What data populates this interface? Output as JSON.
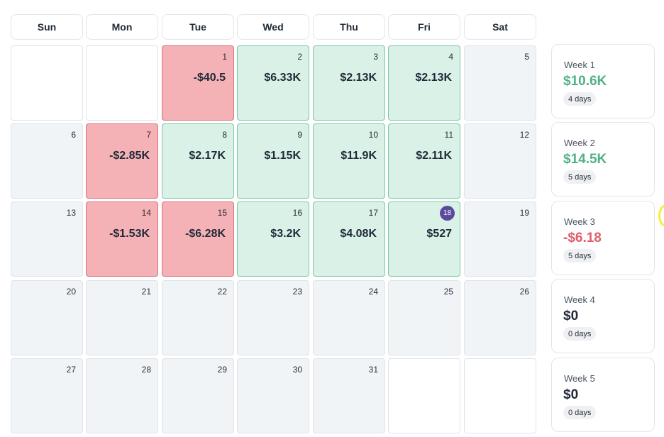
{
  "weekdays": [
    "Sun",
    "Mon",
    "Tue",
    "Wed",
    "Thu",
    "Fri",
    "Sat"
  ],
  "calendar": {
    "weeks": [
      [
        {
          "day": "",
          "amount": "",
          "status": "blank"
        },
        {
          "day": "",
          "amount": "",
          "status": "blank"
        },
        {
          "day": "1",
          "amount": "-$40.5",
          "status": "loss"
        },
        {
          "day": "2",
          "amount": "$6.33K",
          "status": "win"
        },
        {
          "day": "3",
          "amount": "$2.13K",
          "status": "win"
        },
        {
          "day": "4",
          "amount": "$2.13K",
          "status": "win"
        },
        {
          "day": "5",
          "amount": "",
          "status": "empty"
        }
      ],
      [
        {
          "day": "6",
          "amount": "",
          "status": "empty"
        },
        {
          "day": "7",
          "amount": "-$2.85K",
          "status": "loss"
        },
        {
          "day": "8",
          "amount": "$2.17K",
          "status": "win"
        },
        {
          "day": "9",
          "amount": "$1.15K",
          "status": "win"
        },
        {
          "day": "10",
          "amount": "$11.9K",
          "status": "win"
        },
        {
          "day": "11",
          "amount": "$2.11K",
          "status": "win"
        },
        {
          "day": "12",
          "amount": "",
          "status": "empty"
        }
      ],
      [
        {
          "day": "13",
          "amount": "",
          "status": "empty"
        },
        {
          "day": "14",
          "amount": "-$1.53K",
          "status": "loss"
        },
        {
          "day": "15",
          "amount": "-$6.28K",
          "status": "loss"
        },
        {
          "day": "16",
          "amount": "$3.2K",
          "status": "win"
        },
        {
          "day": "17",
          "amount": "$4.08K",
          "status": "win"
        },
        {
          "day": "18",
          "amount": "$527",
          "status": "win",
          "today": true
        },
        {
          "day": "19",
          "amount": "",
          "status": "empty"
        }
      ],
      [
        {
          "day": "20",
          "amount": "",
          "status": "empty"
        },
        {
          "day": "21",
          "amount": "",
          "status": "empty"
        },
        {
          "day": "22",
          "amount": "",
          "status": "empty"
        },
        {
          "day": "23",
          "amount": "",
          "status": "empty"
        },
        {
          "day": "24",
          "amount": "",
          "status": "empty"
        },
        {
          "day": "25",
          "amount": "",
          "status": "empty"
        },
        {
          "day": "26",
          "amount": "",
          "status": "empty"
        }
      ],
      [
        {
          "day": "27",
          "amount": "",
          "status": "empty"
        },
        {
          "day": "28",
          "amount": "",
          "status": "empty"
        },
        {
          "day": "29",
          "amount": "",
          "status": "empty"
        },
        {
          "day": "30",
          "amount": "",
          "status": "empty"
        },
        {
          "day": "31",
          "amount": "",
          "status": "empty"
        },
        {
          "day": "",
          "amount": "",
          "status": "blank"
        },
        {
          "day": "",
          "amount": "",
          "status": "blank"
        }
      ]
    ]
  },
  "week_summaries": [
    {
      "label": "Week 1",
      "total": "$10.6K",
      "days": "4 days",
      "tone": "positive"
    },
    {
      "label": "Week 2",
      "total": "$14.5K",
      "days": "5 days",
      "tone": "positive"
    },
    {
      "label": "Week 3",
      "total": "-$6.18",
      "days": "5 days",
      "tone": "negative"
    },
    {
      "label": "Week 4",
      "total": "$0",
      "days": "0 days",
      "tone": "neutral"
    },
    {
      "label": "Week 5",
      "total": "$0",
      "days": "0 days",
      "tone": "neutral"
    }
  ],
  "colors": {
    "positive": "#52b188",
    "negative": "#e05d6a",
    "neutral": "#1f2937",
    "today_badge": "#5a4a9c",
    "win_cell": "#d9f1e7",
    "loss_cell": "#f4b2b6"
  }
}
